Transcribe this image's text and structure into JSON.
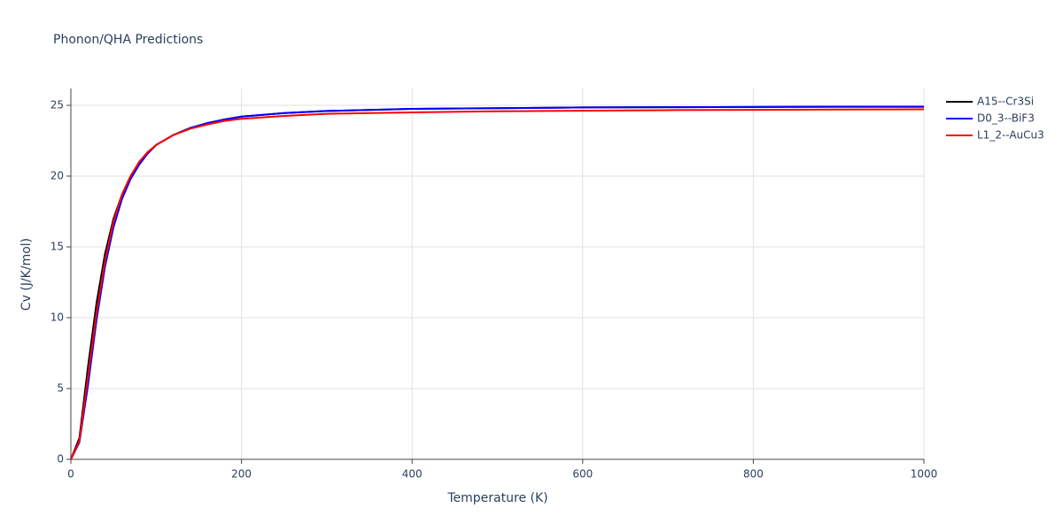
{
  "chart_data": {
    "type": "line",
    "title": "Phonon/QHA Predictions",
    "x_label": "Temperature (K)",
    "y_label": "Cv (J/K/mol)",
    "x": [
      0,
      10,
      20,
      30,
      40,
      50,
      60,
      70,
      80,
      90,
      100,
      120,
      140,
      160,
      180,
      200,
      250,
      300,
      400,
      500,
      600,
      700,
      800,
      900,
      1000
    ],
    "series": [
      {
        "name": "A15--Cr3Si",
        "color": "#000000",
        "values": [
          0,
          1.5,
          6.5,
          11,
          14.5,
          17,
          18.7,
          20,
          20.9,
          21.6,
          22.2,
          22.9,
          23.4,
          23.7,
          24.0,
          24.2,
          24.45,
          24.6,
          24.75,
          24.8,
          24.85,
          24.87,
          24.88,
          24.9,
          24.9
        ]
      },
      {
        "name": "D0_3--BiF3",
        "color": "#0000ff",
        "values": [
          0,
          1.2,
          5.2,
          9.8,
          13.6,
          16.4,
          18.4,
          19.8,
          20.8,
          21.6,
          22.2,
          22.9,
          23.4,
          23.75,
          24.0,
          24.2,
          24.45,
          24.6,
          24.75,
          24.8,
          24.85,
          24.87,
          24.88,
          24.9,
          24.9
        ]
      },
      {
        "name": "L1_2--AuCu3",
        "color": "#ff0000",
        "values": [
          0,
          1.3,
          5.8,
          10.3,
          14,
          16.8,
          18.7,
          20,
          21,
          21.7,
          22.2,
          22.9,
          23.35,
          23.65,
          23.9,
          24.05,
          24.25,
          24.4,
          24.5,
          24.58,
          24.62,
          24.66,
          24.68,
          24.7,
          24.72
        ]
      }
    ],
    "xlim": [
      0,
      1000
    ],
    "xticks": [
      0,
      200,
      400,
      600,
      800,
      1000
    ],
    "ylim": [
      0,
      25
    ],
    "yticks": [
      0,
      5,
      10,
      15,
      20,
      25
    ],
    "grid": true,
    "legend": "right"
  }
}
